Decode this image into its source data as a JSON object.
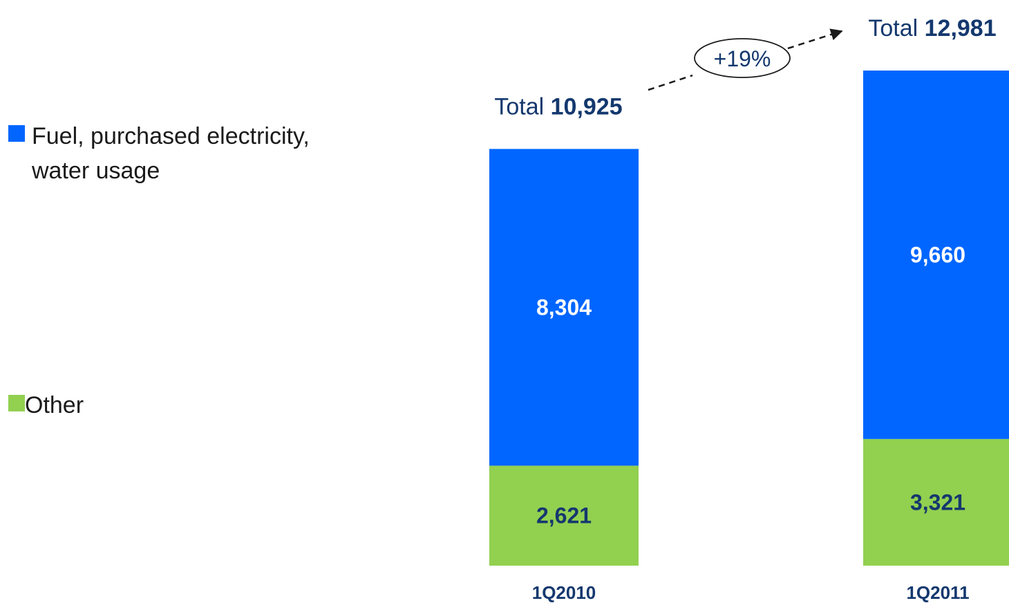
{
  "chart_data": {
    "type": "bar",
    "stacked": true,
    "categories": [
      "1Q2010",
      "1Q2011"
    ],
    "series": [
      {
        "name": "Other",
        "values": [
          2621,
          3321
        ],
        "value_labels": [
          "2,621",
          "3,321"
        ],
        "color": "#92d050",
        "label_color": "#14386e"
      },
      {
        "name": "Fuel, purchased electricity, water usage",
        "values": [
          8304,
          9660
        ],
        "value_labels": [
          "8,304",
          "9,660"
        ],
        "color": "#0066ff",
        "label_color": "#ffffff"
      }
    ],
    "totals": [
      {
        "prefix": "Total",
        "value": 10925,
        "label": "10,925"
      },
      {
        "prefix": "Total",
        "value": 12981,
        "label": "12,981"
      }
    ],
    "annotation": "+19%",
    "legend": {
      "placement": "left",
      "items": [
        {
          "lines": [
            "Fuel, purchased electricity,",
            "water usage"
          ],
          "color": "#0066ff"
        },
        {
          "lines": [
            "Other"
          ],
          "color": "#92d050"
        }
      ]
    },
    "title": "",
    "xlabel": "",
    "ylabel": "",
    "ylim": [
      0,
      12981
    ],
    "grid": false
  }
}
